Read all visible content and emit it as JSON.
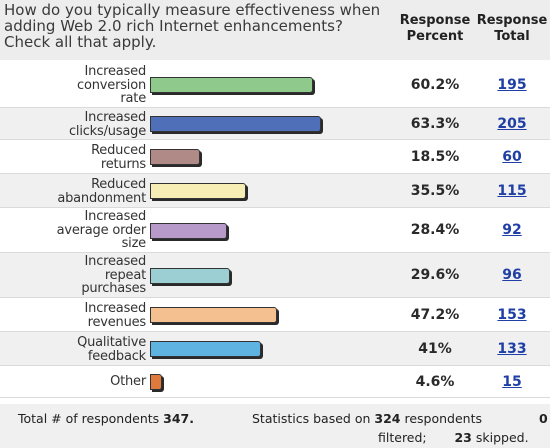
{
  "header": {
    "question": "How do you typically measure effectiveness when adding Web 2.0 rich Internet enhancements? Check all that apply.",
    "col_percent": "Response Percent",
    "col_total": "Response Total"
  },
  "colors": {
    "Increased conversion rate": "#8fc98c",
    "Increased clicks/usage": "#4f70b8",
    "Reduced returns": "#b08a87",
    "Reduced abandonment": "#f6eeb4",
    "Increased average order size": "#b79ac9",
    "Increased repeat purchases": "#9ccfd4",
    "Increased revenues": "#f4c08f",
    "Qualitative feedback": "#5fb3e0",
    "Other": "#e07a3c"
  },
  "chart_data": {
    "type": "bar",
    "orientation": "horizontal",
    "title": "How do you typically measure effectiveness when adding Web 2.0 rich Internet enhancements? Check all that apply.",
    "xlim": [
      0,
      100
    ],
    "categories": [
      "Increased conversion rate",
      "Increased clicks/usage",
      "Reduced returns",
      "Reduced abandonment",
      "Increased average order size",
      "Increased repeat purchases",
      "Increased revenues",
      "Qualitative feedback",
      "Other"
    ],
    "values": [
      60.2,
      63.3,
      18.5,
      35.5,
      28.4,
      29.6,
      47.2,
      41,
      4.6
    ],
    "percent_labels": [
      "60.2%",
      "63.3%",
      "18.5%",
      "35.5%",
      "28.4%",
      "29.6%",
      "47.2%",
      "41%",
      "4.6%"
    ],
    "totals": [
      "195",
      "205",
      "60",
      "115",
      "92",
      "96",
      "153",
      "133",
      "15"
    ]
  },
  "footer": {
    "total_prefix": "Total # of respondents",
    "total_value": "347.",
    "stats_prefix": "Statistics based on",
    "stats_value": "324",
    "stats_suffix": "respondents",
    "filtered_value": "0",
    "filtered_label": "filtered;",
    "skipped_value": "23",
    "skipped_label": "skipped."
  }
}
